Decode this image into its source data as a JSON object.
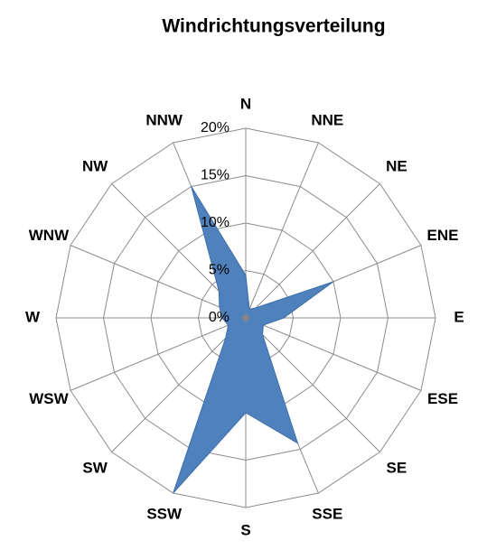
{
  "chart_data": {
    "type": "radar",
    "title": "Windrichtungsverteilung",
    "categories": [
      "N",
      "NNE",
      "NE",
      "ENE",
      "E",
      "ESE",
      "SE",
      "SSE",
      "S",
      "SSW",
      "SW",
      "WSW",
      "W",
      "WNW",
      "NW",
      "NNW"
    ],
    "values": [
      4.5,
      1,
      1.5,
      10,
      4,
      2,
      2.5,
      14.3,
      10,
      20,
      3,
      2,
      2.5,
      3,
      4,
      15
    ],
    "color": "#4f81bd",
    "ylim": [
      0,
      20
    ],
    "yticks": [
      {
        "value": 0,
        "label": "0%"
      },
      {
        "value": 5,
        "label": "5%"
      },
      {
        "value": 10,
        "label": "10%"
      },
      {
        "value": 15,
        "label": "15%"
      },
      {
        "value": 20,
        "label": "20%"
      }
    ],
    "grid": true
  }
}
